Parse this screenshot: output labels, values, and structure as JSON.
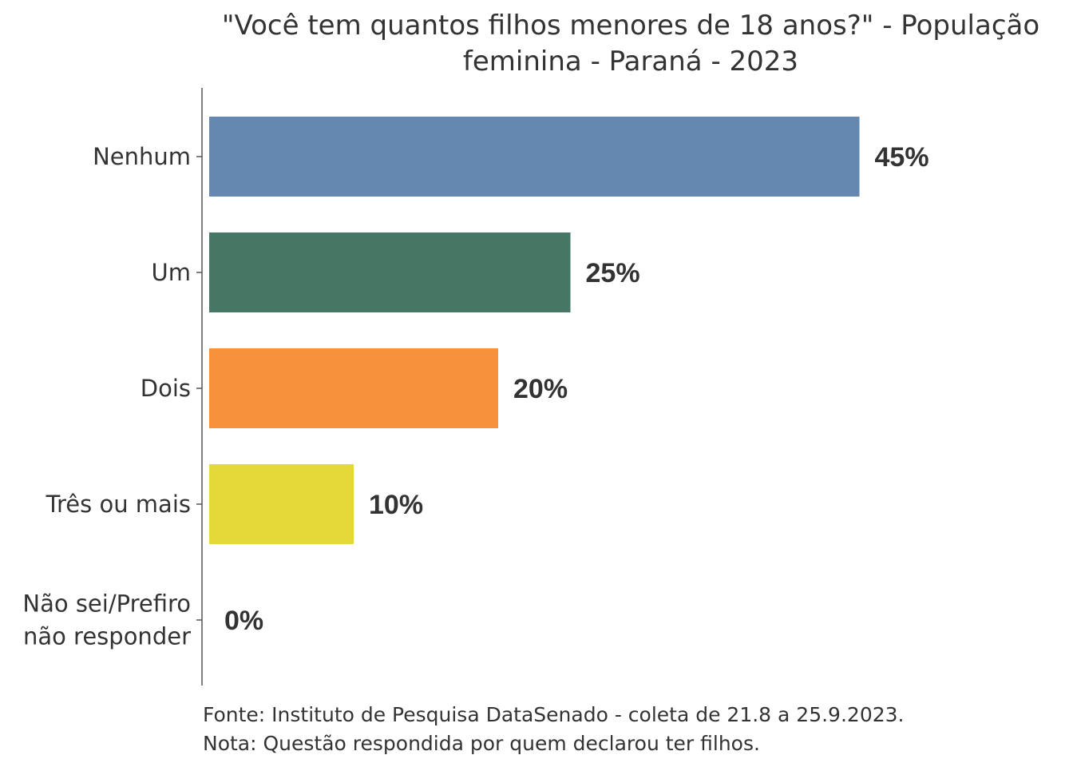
{
  "chart_data": {
    "type": "bar",
    "orientation": "horizontal",
    "title": "\"Você tem quantos filhos menores de 18 anos?\" - População feminina - Paraná - 2023",
    "title_lines": [
      "\"Você tem quantos filhos menores de 18 anos?\" - População",
      "feminina - Paraná - 2023"
    ],
    "categories": [
      "Nenhum",
      "Um",
      "Dois",
      "Três ou mais",
      "Não sei/Prefiro não responder"
    ],
    "category_lines": [
      [
        "Nenhum"
      ],
      [
        "Um"
      ],
      [
        "Dois"
      ],
      [
        "Três ou mais"
      ],
      [
        "Não sei/Prefiro",
        "não responder"
      ]
    ],
    "values": [
      45,
      25,
      20,
      10,
      0
    ],
    "value_labels": [
      "45%",
      "25%",
      "20%",
      "10%",
      "0%"
    ],
    "colors": [
      "#6488B0",
      "#467664",
      "#F8913C",
      "#E5D937",
      "#9A4C8C"
    ],
    "xlim": [
      0,
      55
    ],
    "grid": false,
    "xaxis_visible": false
  },
  "footer": {
    "source": "Fonte: Instituto de Pesquisa DataSenado - coleta de 21.8 a 25.9.2023.",
    "note": "Nota: Questão respondida por quem declarou ter filhos."
  }
}
